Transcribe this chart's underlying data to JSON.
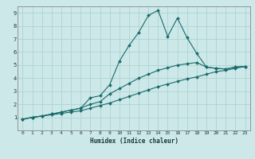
{
  "xlabel": "Humidex (Indice chaleur)",
  "bg_color": "#cce8e8",
  "grid_color": "#aacfcf",
  "line_color": "#1a6b6b",
  "xlim": [
    -0.5,
    23.5
  ],
  "ylim": [
    0,
    9.5
  ],
  "xticks": [
    0,
    1,
    2,
    3,
    4,
    5,
    6,
    7,
    8,
    9,
    10,
    11,
    12,
    13,
    14,
    15,
    16,
    17,
    18,
    19,
    20,
    21,
    22,
    23
  ],
  "yticks": [
    1,
    2,
    3,
    4,
    5,
    6,
    7,
    8,
    9
  ],
  "series1_x": [
    0,
    1,
    2,
    3,
    4,
    5,
    6,
    7,
    8,
    9,
    10,
    11,
    12,
    13,
    14,
    15,
    16,
    17,
    18,
    19,
    20,
    21,
    22,
    23
  ],
  "series1_y": [
    0.85,
    1.0,
    1.1,
    1.25,
    1.4,
    1.55,
    1.7,
    2.5,
    2.65,
    3.5,
    5.3,
    6.5,
    7.5,
    8.8,
    9.2,
    7.2,
    8.6,
    7.1,
    5.9,
    4.85,
    4.75,
    4.7,
    4.85,
    4.9
  ],
  "series2_x": [
    0,
    1,
    2,
    3,
    4,
    5,
    6,
    7,
    8,
    9,
    10,
    11,
    12,
    13,
    14,
    15,
    16,
    17,
    18,
    19,
    20,
    21,
    22,
    23
  ],
  "series2_y": [
    0.85,
    1.0,
    1.1,
    1.25,
    1.4,
    1.55,
    1.7,
    2.0,
    2.2,
    2.8,
    3.2,
    3.6,
    4.0,
    4.3,
    4.6,
    4.8,
    5.0,
    5.1,
    5.2,
    4.85,
    4.75,
    4.7,
    4.85,
    4.9
  ],
  "series3_x": [
    0,
    1,
    2,
    3,
    4,
    5,
    6,
    7,
    8,
    9,
    10,
    11,
    12,
    13,
    14,
    15,
    16,
    17,
    18,
    19,
    20,
    21,
    22,
    23
  ],
  "series3_y": [
    0.85,
    1.0,
    1.1,
    1.2,
    1.3,
    1.4,
    1.5,
    1.7,
    1.9,
    2.1,
    2.35,
    2.6,
    2.85,
    3.1,
    3.35,
    3.55,
    3.75,
    3.95,
    4.1,
    4.3,
    4.5,
    4.6,
    4.75,
    4.9
  ]
}
